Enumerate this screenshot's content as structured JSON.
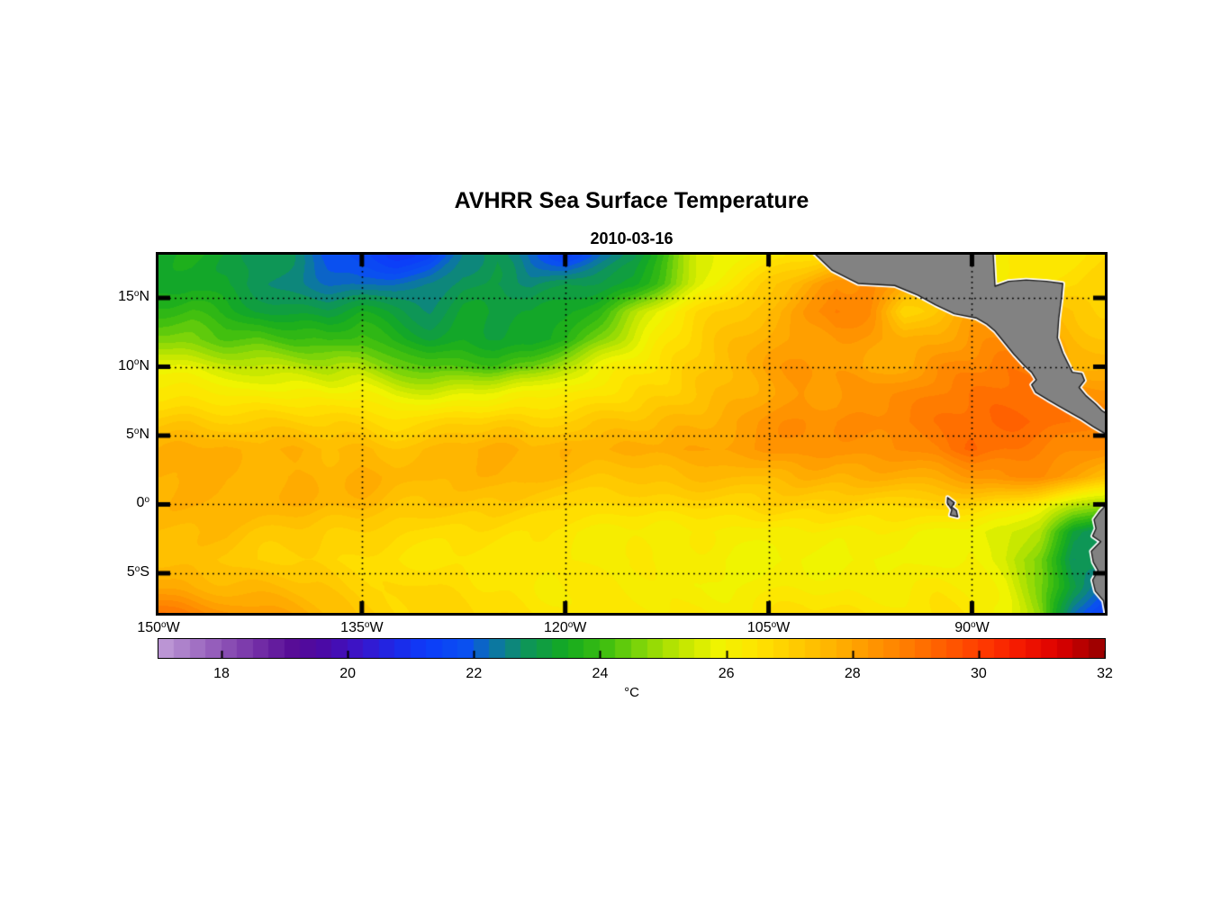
{
  "title": "AVHRR Sea Surface Temperature",
  "subtitle": "2010-03-16",
  "chart_data": {
    "type": "heatmap",
    "title": "AVHRR Sea Surface Temperature",
    "subtitle": "2010-03-16",
    "map": {
      "lon_range": [
        -150,
        -80.2
      ],
      "lat_range": [
        -7.88,
        18.14
      ],
      "grid_lon_start": -150,
      "grid_lon_step": 2.5,
      "grid_lat_start": 18,
      "grid_lat_step": -2,
      "sst_grid": [
        [
          23.4,
          23.5,
          23.4,
          23.1,
          22.8,
          22.0,
          21.6,
          21.4,
          21.7,
          22.6,
          23.1,
          22.1,
          21.6,
          22.4,
          22.9,
          24.2,
          25.6,
          26.1,
          26.4,
          26.6,
          26.9,
          27.1,
          26.9,
          26.6,
          26.3,
          26.3,
          26.5,
          26.7,
          26.9
        ],
        [
          23.3,
          23.5,
          23.4,
          23.1,
          22.8,
          22.5,
          22.3,
          22.4,
          22.6,
          23.0,
          22.9,
          22.7,
          23.0,
          23.2,
          23.5,
          24.6,
          25.8,
          26.6,
          27.3,
          27.9,
          28.5,
          28.7,
          28.1,
          27.5,
          26.8,
          26.5,
          26.6,
          26.8,
          27.0
        ],
        [
          23.9,
          24.0,
          23.7,
          23.5,
          23.2,
          23.1,
          23.4,
          23.2,
          23.0,
          23.4,
          23.3,
          23.2,
          23.6,
          24.2,
          25.2,
          26.2,
          26.8,
          27.3,
          27.8,
          28.3,
          28.9,
          28.4,
          26.9,
          27.5,
          28.1,
          27.8,
          27.5,
          27.4,
          27.2
        ],
        [
          24.8,
          24.6,
          24.3,
          24.4,
          24.1,
          23.9,
          24.2,
          23.8,
          23.5,
          23.7,
          23.5,
          23.4,
          23.9,
          24.8,
          25.6,
          26.4,
          27.0,
          27.6,
          28.0,
          28.2,
          28.4,
          28.2,
          27.9,
          28.0,
          28.4,
          28.6,
          28.2,
          27.7,
          27.5
        ],
        [
          25.9,
          25.8,
          25.7,
          25.5,
          25.3,
          25.1,
          25.2,
          24.8,
          24.4,
          24.2,
          24.1,
          24.5,
          25.4,
          26.0,
          26.3,
          26.6,
          27.2,
          27.8,
          28.2,
          28.4,
          28.3,
          28.0,
          28.2,
          28.6,
          28.8,
          29.0,
          28.8,
          27.9,
          27.7
        ],
        [
          26.6,
          26.5,
          26.4,
          26.3,
          26.2,
          26.0,
          26.2,
          25.8,
          25.7,
          25.9,
          26.0,
          26.2,
          26.4,
          26.6,
          26.8,
          27.0,
          27.4,
          27.9,
          28.2,
          28.5,
          28.3,
          28.5,
          28.7,
          28.9,
          29.0,
          29.1,
          29.2,
          28.9,
          28.5
        ],
        [
          27.2,
          27.3,
          27.2,
          27.1,
          27.0,
          26.9,
          27.0,
          26.8,
          26.9,
          27.0,
          27.2,
          27.1,
          27.3,
          27.4,
          27.4,
          27.6,
          27.8,
          28.2,
          28.4,
          28.6,
          28.5,
          28.7,
          28.9,
          29.0,
          29.2,
          29.3,
          29.4,
          29.2,
          28.8
        ],
        [
          27.7,
          27.9,
          28.0,
          27.8,
          27.9,
          27.7,
          27.8,
          27.6,
          27.7,
          27.8,
          27.9,
          27.7,
          27.9,
          27.8,
          27.9,
          28.0,
          28.1,
          28.3,
          28.4,
          28.5,
          28.3,
          28.5,
          28.7,
          28.9,
          29.5,
          29.2,
          29.0,
          28.8,
          28.6
        ],
        [
          27.8,
          28.0,
          27.9,
          28.0,
          27.9,
          27.8,
          27.9,
          27.7,
          27.8,
          27.6,
          27.7,
          27.5,
          27.6,
          27.5,
          27.4,
          27.5,
          27.6,
          27.7,
          27.8,
          27.9,
          27.8,
          27.9,
          28.0,
          28.2,
          28.4,
          28.6,
          28.5,
          28.2,
          27.6
        ],
        [
          27.7,
          27.8,
          27.9,
          27.8,
          27.7,
          27.6,
          27.7,
          27.5,
          27.4,
          27.3,
          27.2,
          27.1,
          27.0,
          26.9,
          26.8,
          26.9,
          27.0,
          27.1,
          27.2,
          27.0,
          26.9,
          26.8,
          26.9,
          27.0,
          26.8,
          26.6,
          26.2,
          25.6,
          25.0
        ],
        [
          27.4,
          27.5,
          27.6,
          27.4,
          27.3,
          27.2,
          27.1,
          27.0,
          26.9,
          26.8,
          26.7,
          26.6,
          26.5,
          26.4,
          26.3,
          26.2,
          26.3,
          26.2,
          26.3,
          26.2,
          26.1,
          26.2,
          26.3,
          26.2,
          26.0,
          25.8,
          25.2,
          23.4,
          22.8
        ],
        [
          27.6,
          27.5,
          27.4,
          27.2,
          27.0,
          26.9,
          26.8,
          26.7,
          26.6,
          26.5,
          26.4,
          26.3,
          26.4,
          26.3,
          26.2,
          26.1,
          26.2,
          26.1,
          26.2,
          26.1,
          26.0,
          26.1,
          26.2,
          26.1,
          26.0,
          25.6,
          24.6,
          23.0,
          23.4
        ],
        [
          28.2,
          28.0,
          27.8,
          27.6,
          27.4,
          27.2,
          27.0,
          26.9,
          26.8,
          26.7,
          26.6,
          26.5,
          26.5,
          26.4,
          26.3,
          26.2,
          26.3,
          26.2,
          26.3,
          26.4,
          26.3,
          26.4,
          26.3,
          26.4,
          26.2,
          25.8,
          24.8,
          23.2,
          22.0
        ],
        [
          29.1,
          28.8,
          28.5,
          28.2,
          27.9,
          27.6,
          27.3,
          27.1,
          27.0,
          26.9,
          26.8,
          26.7,
          26.6,
          26.5,
          26.4,
          26.4,
          26.5,
          26.4,
          26.5,
          26.6,
          26.5,
          26.6,
          26.5,
          26.6,
          26.4,
          26.0,
          25.0,
          22.6,
          21.2
        ]
      ]
    },
    "axis": {
      "lat_ticks": [
        {
          "lat": 15,
          "text": "15",
          "suffix": "N"
        },
        {
          "lat": 10,
          "text": "10",
          "suffix": "N"
        },
        {
          "lat": 5,
          "text": "5",
          "suffix": "N"
        },
        {
          "lat": 0,
          "text": "0",
          "suffix": ""
        },
        {
          "lat": -5,
          "text": "5",
          "suffix": "S"
        }
      ],
      "lon_ticks": [
        {
          "lon": -150,
          "text": "150",
          "suffix": "W"
        },
        {
          "lon": -135,
          "text": "135",
          "suffix": "W"
        },
        {
          "lon": -120,
          "text": "120",
          "suffix": "W"
        },
        {
          "lon": -105,
          "text": "105",
          "suffix": "W"
        },
        {
          "lon": -90,
          "text": "90",
          "suffix": "W"
        }
      ],
      "gridline_lats": [
        15,
        10,
        5,
        0,
        -5
      ],
      "gridline_lons": [
        -135,
        -120,
        -105,
        -90
      ]
    },
    "colorbar": {
      "min": 17,
      "max": 32,
      "ticks": [
        18,
        20,
        22,
        24,
        26,
        28,
        30,
        32
      ],
      "label": "°C",
      "stops": [
        [
          17.0,
          "#c8a8dc"
        ],
        [
          17.6,
          "#a87ac8"
        ],
        [
          18.2,
          "#8c50b4"
        ],
        [
          18.8,
          "#6e28a4"
        ],
        [
          19.3,
          "#560a96"
        ],
        [
          19.8,
          "#4a0aa8"
        ],
        [
          20.3,
          "#3c14c8"
        ],
        [
          20.8,
          "#2026e4"
        ],
        [
          21.4,
          "#0c3cfa"
        ],
        [
          22.0,
          "#0a50f0"
        ],
        [
          22.5,
          "#0c78a0"
        ],
        [
          23.0,
          "#0e9656"
        ],
        [
          23.6,
          "#14aa20"
        ],
        [
          24.2,
          "#3cbe10"
        ],
        [
          24.8,
          "#82d608"
        ],
        [
          25.4,
          "#c0e600"
        ],
        [
          26.0,
          "#f0f400"
        ],
        [
          26.6,
          "#ffe400"
        ],
        [
          27.2,
          "#ffcc00"
        ],
        [
          27.8,
          "#ffb400"
        ],
        [
          28.4,
          "#ff9800"
        ],
        [
          29.0,
          "#ff7c00"
        ],
        [
          29.6,
          "#ff5c00"
        ],
        [
          30.2,
          "#ff3a00"
        ],
        [
          30.8,
          "#f41800"
        ],
        [
          31.4,
          "#dc0000"
        ],
        [
          32.0,
          "#a00000"
        ]
      ]
    },
    "land": {
      "fill_color": "#828282",
      "outline_color": "#1a1a1a",
      "coast_halo_color": "#ffffff",
      "polygons": {
        "central_america": [
          [
            -101.9,
            18.5
          ],
          [
            -100.3,
            17.0
          ],
          [
            -98.4,
            16.05
          ],
          [
            -95.7,
            15.9
          ],
          [
            -94.0,
            15.2
          ],
          [
            -92.7,
            14.5
          ],
          [
            -91.3,
            13.85
          ],
          [
            -89.7,
            13.55
          ],
          [
            -88.9,
            13.1
          ],
          [
            -88.3,
            12.6
          ],
          [
            -87.6,
            11.75
          ],
          [
            -86.9,
            10.9
          ],
          [
            -86.1,
            10.05
          ],
          [
            -85.6,
            9.6
          ],
          [
            -85.25,
            9.05
          ],
          [
            -85.6,
            8.7
          ],
          [
            -85.3,
            8.15
          ],
          [
            -84.4,
            7.6
          ],
          [
            -83.6,
            7.15
          ],
          [
            -82.9,
            6.75
          ],
          [
            -81.9,
            6.2
          ],
          [
            -81.05,
            5.65
          ],
          [
            -80.1,
            5.1
          ],
          [
            -79.6,
            5.0
          ],
          [
            -79.6,
            6.3
          ],
          [
            -80.4,
            6.8
          ],
          [
            -80.9,
            7.3
          ],
          [
            -81.6,
            7.9
          ],
          [
            -82.1,
            8.5
          ],
          [
            -81.7,
            9.0
          ],
          [
            -81.9,
            9.5
          ],
          [
            -82.6,
            9.6
          ],
          [
            -83.3,
            11.0
          ],
          [
            -83.7,
            12.1
          ],
          [
            -83.6,
            13.5
          ],
          [
            -83.4,
            15.0
          ],
          [
            -83.3,
            16.05
          ],
          [
            -84.5,
            16.2
          ],
          [
            -86.0,
            16.3
          ],
          [
            -87.3,
            16.2
          ],
          [
            -88.3,
            15.85
          ],
          [
            -88.45,
            18.5
          ]
        ],
        "south_america": [
          [
            -79.6,
            -0.05
          ],
          [
            -80.2,
            -0.15
          ],
          [
            -80.55,
            -0.5
          ],
          [
            -81.0,
            -1.1
          ],
          [
            -80.85,
            -1.75
          ],
          [
            -81.1,
            -2.3
          ],
          [
            -80.5,
            -2.7
          ],
          [
            -81.2,
            -3.4
          ],
          [
            -81.05,
            -4.2
          ],
          [
            -80.7,
            -4.8
          ],
          [
            -81.1,
            -5.5
          ],
          [
            -80.9,
            -6.3
          ],
          [
            -80.3,
            -7.0
          ],
          [
            -80.1,
            -8.1
          ],
          [
            -79.6,
            -8.1
          ]
        ],
        "galapagos": [
          [
            -91.8,
            0.5
          ],
          [
            -91.3,
            0.12
          ],
          [
            -91.5,
            -0.18
          ],
          [
            -91.15,
            -0.45
          ],
          [
            -91.05,
            -0.9
          ],
          [
            -91.6,
            -0.78
          ],
          [
            -91.48,
            -0.38
          ],
          [
            -91.82,
            0.1
          ]
        ]
      }
    }
  }
}
